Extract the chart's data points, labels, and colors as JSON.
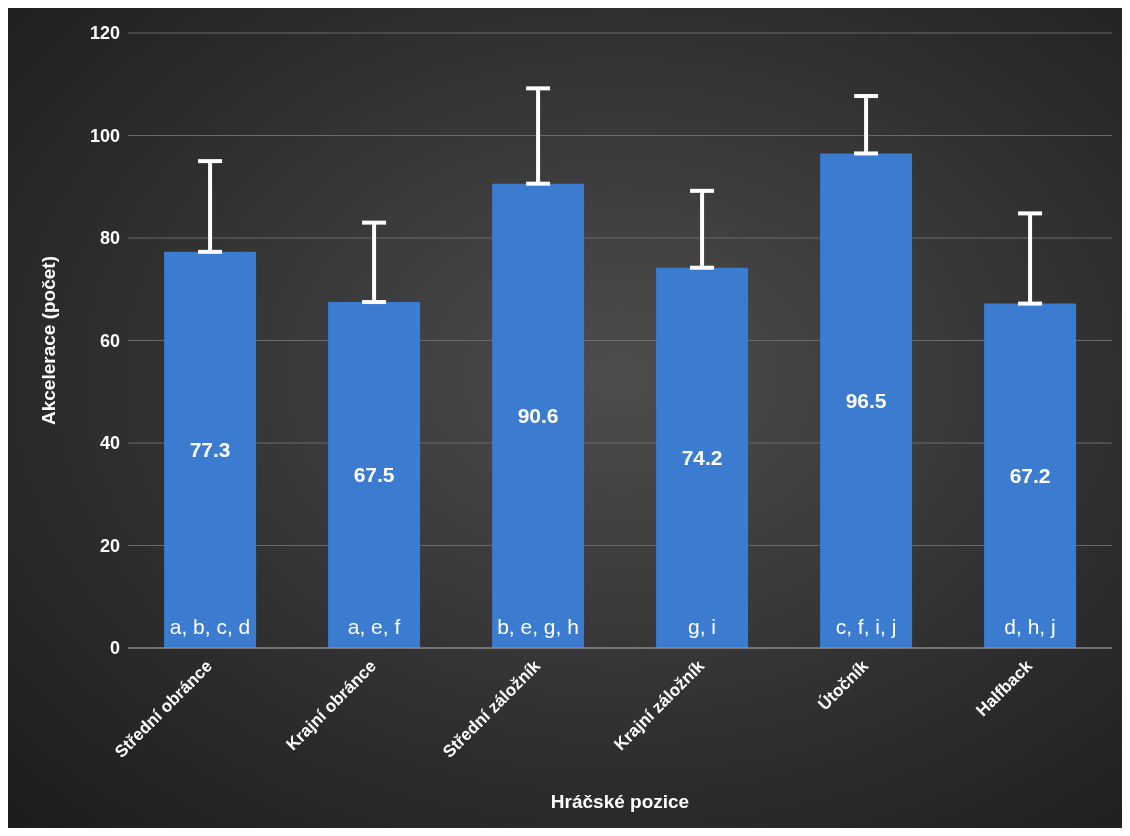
{
  "chart_data": {
    "type": "bar",
    "xlabel": "Hráčské pozice",
    "ylabel": "Akcelerace (počet)",
    "categories": [
      "Střední obránce",
      "Krajní obránce",
      "Střední záložník",
      "Krajní záložník",
      "Útočník",
      "Halfback"
    ],
    "values": [
      77.3,
      67.5,
      90.6,
      74.2,
      96.5,
      67.2
    ],
    "errors": [
      [
        77.3,
        95.0
      ],
      [
        67.5,
        83.0
      ],
      [
        90.6,
        109.2
      ],
      [
        74.2,
        89.2
      ],
      [
        96.5,
        107.7
      ],
      [
        67.2,
        84.8
      ]
    ],
    "color": "#3b7bd0",
    "data_labels": true,
    "ylim": [
      0,
      120
    ],
    "yticks": [
      0,
      20,
      40,
      60,
      80,
      100,
      120
    ],
    "grid": "y",
    "annotations": [
      {
        "text": "a, b, c, d",
        "x": "Střední obránce",
        "y": 0
      },
      {
        "text": "a, e, f",
        "x": "Krajní obránce",
        "y": 0
      },
      {
        "text": "b, e, g, h",
        "x": "Střední záložník",
        "y": 0
      },
      {
        "text": "g, i",
        "x": "Krajní záložník",
        "y": 0
      },
      {
        "text": "c, f, i, j",
        "x": "Útočník",
        "y": 0
      },
      {
        "text": "d, h, j",
        "x": "Halfback",
        "y": 0
      }
    ]
  }
}
